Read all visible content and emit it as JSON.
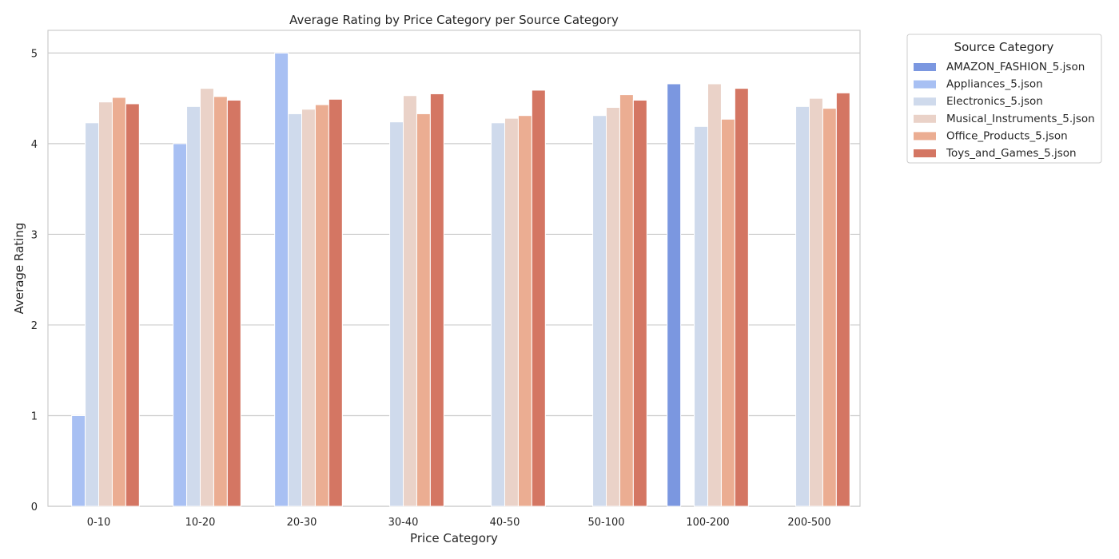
{
  "chart_data": {
    "type": "bar",
    "title": "Average Rating by Price Category per Source Category",
    "xlabel": "Price Category",
    "ylabel": "Average Rating",
    "ylim": [
      0,
      5.25
    ],
    "yticks": [
      0,
      1,
      2,
      3,
      4,
      5
    ],
    "grid": true,
    "legend": {
      "title": "Source Category",
      "placement": "outside-top-right"
    },
    "categories": [
      "0-10",
      "10-20",
      "20-30",
      "30-40",
      "40-50",
      "50-100",
      "100-200",
      "200-500"
    ],
    "series": [
      {
        "name": "AMAZON_FASHION_5.json",
        "color": "#7b97e0",
        "values": [
          null,
          null,
          null,
          null,
          null,
          null,
          4.66,
          null
        ]
      },
      {
        "name": "Appliances_5.json",
        "color": "#a8c0f3",
        "values": [
          1.0,
          4.0,
          5.0,
          null,
          null,
          null,
          null,
          null
        ]
      },
      {
        "name": "Electronics_5.json",
        "color": "#cfdaec",
        "values": [
          4.23,
          4.41,
          4.33,
          4.24,
          4.23,
          4.31,
          4.19,
          4.41
        ]
      },
      {
        "name": "Musical_Instruments_5.json",
        "color": "#ead2c8",
        "values": [
          4.46,
          4.61,
          4.38,
          4.53,
          4.28,
          4.4,
          4.66,
          4.5
        ]
      },
      {
        "name": "Office_Products_5.json",
        "color": "#ebad92",
        "values": [
          4.51,
          4.52,
          4.43,
          4.33,
          4.31,
          4.54,
          4.27,
          4.39
        ]
      },
      {
        "name": "Toys_and_Games_5.json",
        "color": "#d47663",
        "values": [
          4.44,
          4.48,
          4.49,
          4.55,
          4.59,
          4.48,
          4.61,
          4.56
        ]
      }
    ]
  }
}
